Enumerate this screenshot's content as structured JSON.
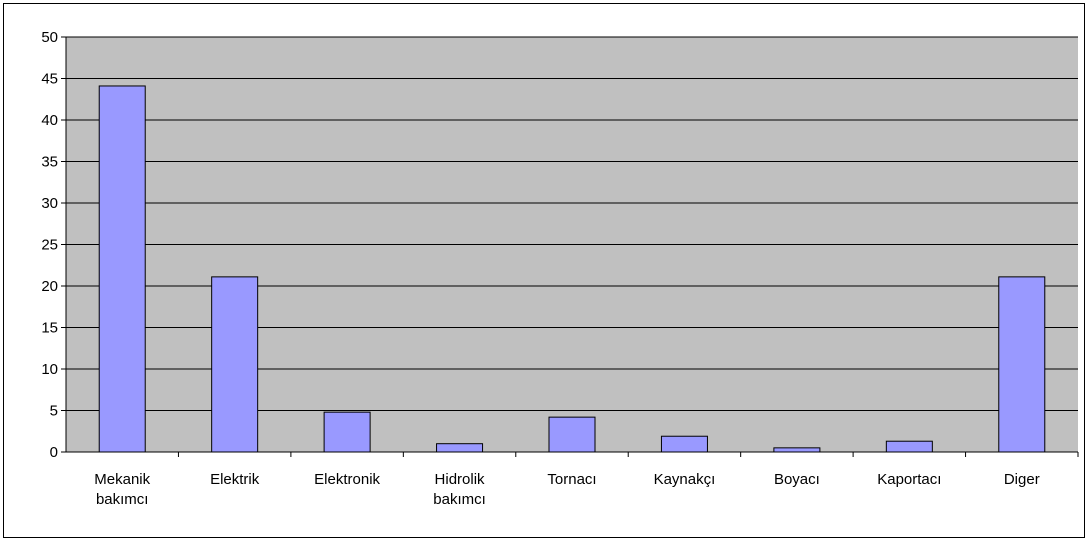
{
  "chart_data": {
    "type": "bar",
    "categories": [
      "Mekanik bakımcı",
      "Elektrik",
      "Elektronik",
      "Hidrolik bakımcı",
      "Tornacı",
      "Kaynakçı",
      "Boyacı",
      "Kaportacı",
      "Diger"
    ],
    "values": [
      44.1,
      21.1,
      4.8,
      1.0,
      4.2,
      1.9,
      0.5,
      1.3,
      21.1
    ],
    "color": "#9999ff",
    "plot_background": "#c0c0c0",
    "ylim": [
      0,
      50
    ],
    "yticks": [
      0,
      5,
      10,
      15,
      20,
      25,
      30,
      35,
      40,
      45,
      50
    ],
    "grid": true
  }
}
